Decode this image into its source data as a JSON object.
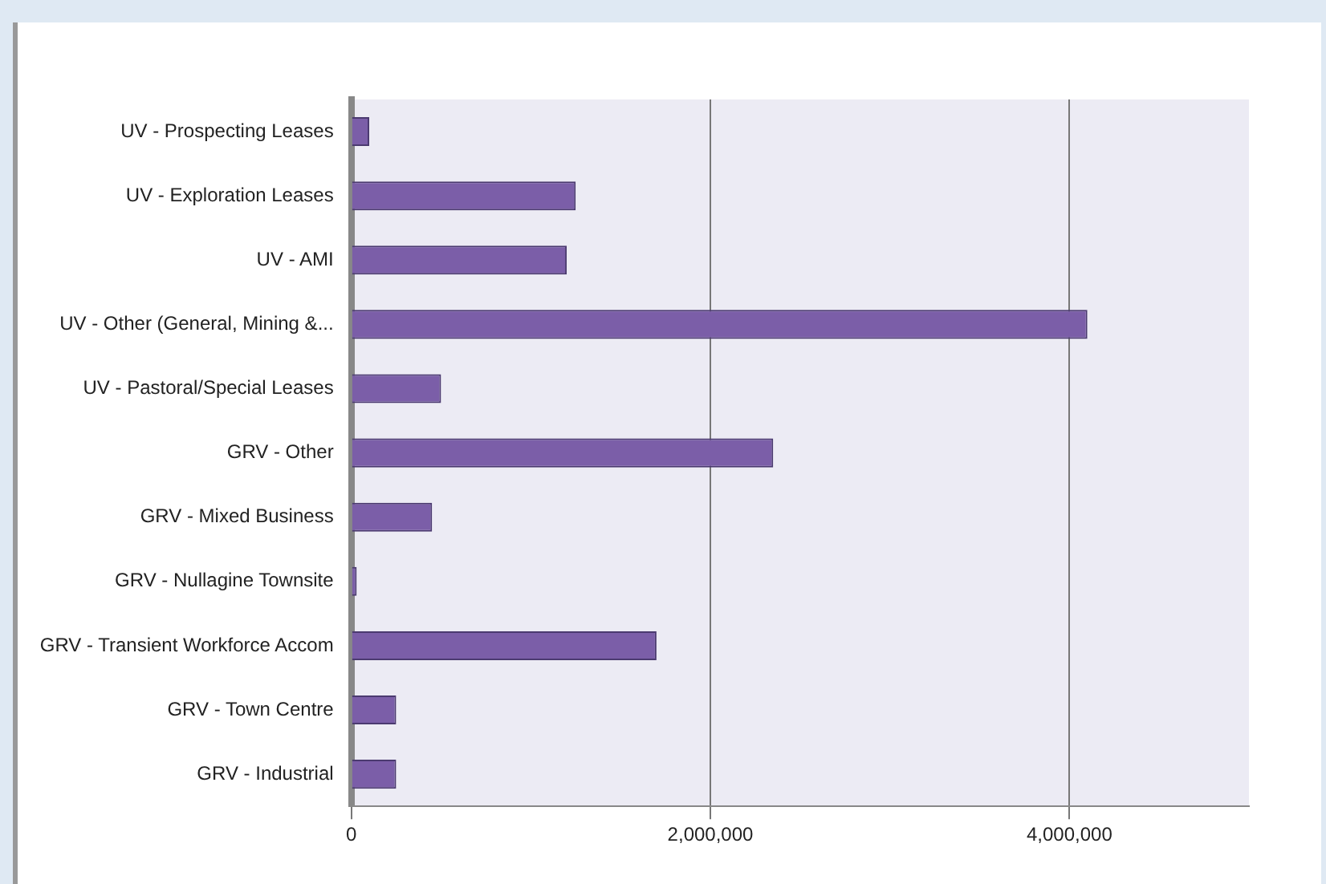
{
  "chart_data": {
    "type": "bar",
    "orientation": "horizontal",
    "categories": [
      "UV - Prospecting Leases",
      "UV - Exploration Leases",
      "UV - AMI",
      "UV - Other (General, Mining &...",
      "UV - Pastoral/Special Leases",
      "GRV - Other",
      "GRV - Mixed Business",
      "GRV - Nullagine Townsite",
      "GRV - Transient Workforce Accom",
      "GRV - Town Centre",
      "GRV - Industrial"
    ],
    "values": [
      100000,
      1250000,
      1200000,
      4100000,
      500000,
      2350000,
      450000,
      30000,
      1700000,
      250000,
      250000
    ],
    "color": "#7b5ea8",
    "xlim": [
      0,
      5000000
    ],
    "xticks": [
      0,
      {
        "value": 2000000,
        "label": "2,000,000"
      },
      {
        "value": 4000000,
        "label": "4,000,000"
      }
    ],
    "grid": "x",
    "legend": false
  }
}
